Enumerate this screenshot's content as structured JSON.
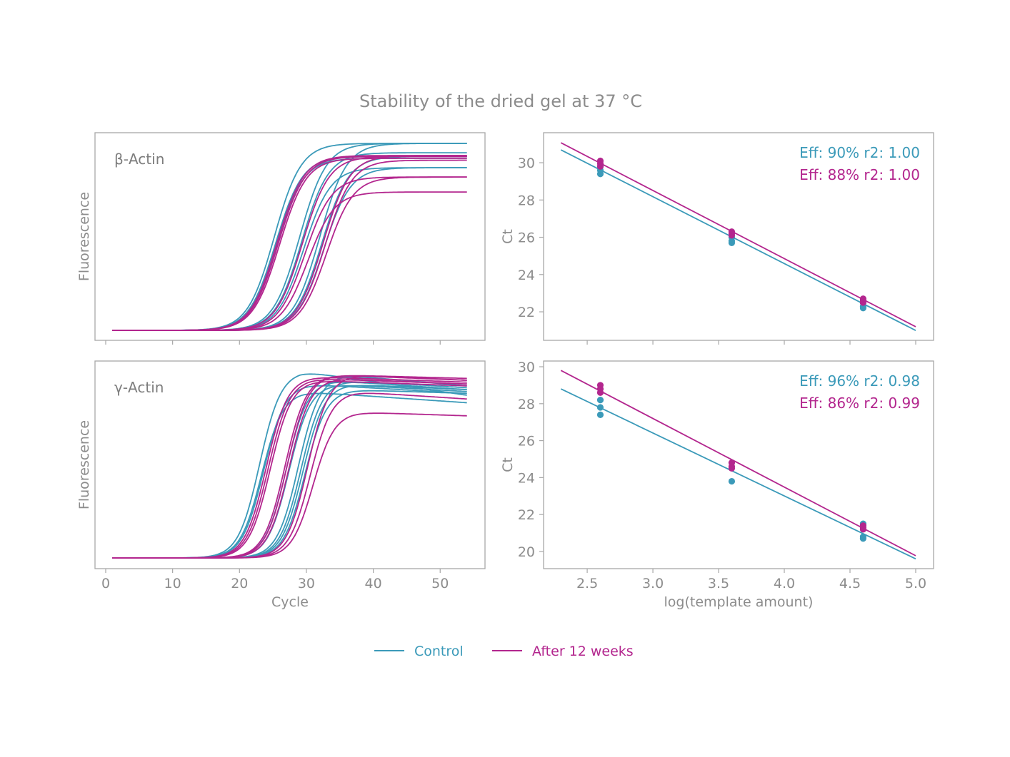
{
  "title": "Stability of the dried gel at 37 °C",
  "colors": {
    "control": "#3b9ab9",
    "after": "#b3268e",
    "text": "#8c8c8c",
    "frame": "#a8a8a8"
  },
  "legend": {
    "placement": "bottom-center",
    "items": [
      {
        "label": "Control",
        "color_key": "control"
      },
      {
        "label": "After 12 weeks",
        "color_key": "after"
      }
    ]
  },
  "chart_data": [
    {
      "type": "line",
      "panel_label": "β-Actin",
      "xlabel": "",
      "ylabel": "Fluorescence",
      "xlim": [
        -1.6,
        56.7
      ],
      "ylim": [
        -0.053,
        1.057
      ],
      "xticks": [
        0,
        10,
        20,
        30,
        40,
        50
      ],
      "show_xtick_labels": false,
      "yticks": [],
      "cycles": [
        1,
        54
      ],
      "curve_model": "sigmoid; y normalized fluorescence (0 = baseline, 1 = max plateau)",
      "series": [
        {
          "group": "control",
          "curves": [
            {
              "midpoint": 25.2,
              "peak": 1.0,
              "end": 1.0
            },
            {
              "midpoint": 25.4,
              "peak": 0.93,
              "end": 0.93
            },
            {
              "midpoint": 25.6,
              "peak": 0.92,
              "end": 0.92
            },
            {
              "midpoint": 29.0,
              "peak": 1.0,
              "end": 1.0
            },
            {
              "midpoint": 29.3,
              "peak": 0.95,
              "end": 0.95
            },
            {
              "midpoint": 29.6,
              "peak": 0.87,
              "end": 0.87
            },
            {
              "midpoint": 32.0,
              "peak": 1.0,
              "end": 1.0
            },
            {
              "midpoint": 32.3,
              "peak": 0.93,
              "end": 0.93
            },
            {
              "midpoint": 32.6,
              "peak": 0.87,
              "end": 0.87
            }
          ]
        },
        {
          "group": "after",
          "curves": [
            {
              "midpoint": 25.6,
              "peak": 0.935,
              "end": 0.935
            },
            {
              "midpoint": 25.8,
              "peak": 0.93,
              "end": 0.93
            },
            {
              "midpoint": 26.0,
              "peak": 0.92,
              "end": 0.92
            },
            {
              "midpoint": 29.4,
              "peak": 0.93,
              "end": 0.93
            },
            {
              "midpoint": 29.8,
              "peak": 0.82,
              "end": 0.82
            },
            {
              "midpoint": 30.2,
              "peak": 0.74,
              "end": 0.74
            },
            {
              "midpoint": 32.5,
              "peak": 0.935,
              "end": 0.935
            },
            {
              "midpoint": 32.8,
              "peak": 0.91,
              "end": 0.91
            },
            {
              "midpoint": 33.0,
              "peak": 0.82,
              "end": 0.82
            }
          ]
        }
      ],
      "slope": 2.0
    },
    {
      "type": "scatter",
      "xlabel": "",
      "ylabel": "Ct",
      "xlim": [
        2.168,
        5.136
      ],
      "ylim": [
        20.47,
        31.61
      ],
      "xticks": [
        2.5,
        3.0,
        3.5,
        4.0,
        4.5,
        5.0
      ],
      "show_xtick_labels": false,
      "yticks": [
        22,
        24,
        26,
        28,
        30
      ],
      "series": [
        {
          "group": "control",
          "annotation": "Eff: 90% r2: 1.00",
          "points": [
            [
              2.6,
              29.4
            ],
            [
              2.6,
              29.6
            ],
            [
              2.6,
              29.8
            ],
            [
              3.6,
              25.7
            ],
            [
              3.6,
              25.8
            ],
            [
              3.6,
              26.0
            ],
            [
              4.6,
              22.2
            ],
            [
              4.6,
              22.3
            ],
            [
              4.6,
              22.5
            ]
          ],
          "fit": [
            [
              2.3,
              30.69
            ],
            [
              5.0,
              21.0
            ]
          ]
        },
        {
          "group": "after",
          "annotation": "Eff: 88% r2: 1.00",
          "points": [
            [
              2.6,
              29.8
            ],
            [
              2.6,
              29.95
            ],
            [
              2.6,
              30.1
            ],
            [
              3.6,
              26.1
            ],
            [
              3.6,
              26.2
            ],
            [
              3.6,
              26.3
            ],
            [
              4.6,
              22.5
            ],
            [
              4.6,
              22.6
            ],
            [
              4.6,
              22.7
            ]
          ],
          "fit": [
            [
              2.3,
              31.07
            ],
            [
              5.0,
              21.2
            ]
          ]
        }
      ]
    },
    {
      "type": "line",
      "panel_label": "γ-Actin",
      "xlabel": "Cycle",
      "ylabel": "Fluorescence",
      "xlim": [
        -1.6,
        56.7
      ],
      "ylim": [
        -0.057,
        1.053
      ],
      "xticks": [
        0,
        10,
        20,
        30,
        40,
        50
      ],
      "show_xtick_labels": true,
      "yticks": [],
      "cycles": [
        1,
        54
      ],
      "curve_model": "sigmoid with post-peak decline; y normalized fluorescence",
      "series": [
        {
          "group": "control",
          "curves": [
            {
              "midpoint": 23.0,
              "peak": 1.0,
              "end": 0.87
            },
            {
              "midpoint": 23.3,
              "peak": 0.89,
              "end": 0.83
            },
            {
              "midpoint": 23.6,
              "peak": 0.93,
              "end": 0.88
            },
            {
              "midpoint": 27.0,
              "peak": 0.95,
              "end": 0.9
            },
            {
              "midpoint": 27.4,
              "peak": 0.93,
              "end": 0.89
            },
            {
              "midpoint": 28.8,
              "peak": 0.98,
              "end": 0.92
            },
            {
              "midpoint": 29.2,
              "peak": 0.95,
              "end": 0.91
            },
            {
              "midpoint": 29.5,
              "peak": 0.93,
              "end": 0.9
            },
            {
              "midpoint": 29.8,
              "peak": 0.9,
              "end": 0.88
            }
          ]
        },
        {
          "group": "after",
          "curves": [
            {
              "midpoint": 24.0,
              "peak": 0.97,
              "end": 0.94
            },
            {
              "midpoint": 24.3,
              "peak": 0.96,
              "end": 0.93
            },
            {
              "midpoint": 24.6,
              "peak": 0.95,
              "end": 0.92
            },
            {
              "midpoint": 26.8,
              "peak": 0.98,
              "end": 0.95
            },
            {
              "midpoint": 27.1,
              "peak": 0.98,
              "end": 0.96
            },
            {
              "midpoint": 27.4,
              "peak": 0.96,
              "end": 0.93
            },
            {
              "midpoint": 30.2,
              "peak": 0.98,
              "end": 0.95
            },
            {
              "midpoint": 30.6,
              "peak": 0.89,
              "end": 0.85
            },
            {
              "midpoint": 31.0,
              "peak": 0.78,
              "end": 0.76
            }
          ]
        }
      ],
      "slope": 1.6
    },
    {
      "type": "scatter",
      "xlabel": "log(template amount)",
      "ylabel": "Ct",
      "xlim": [
        2.168,
        5.136
      ],
      "ylim": [
        19.07,
        30.31
      ],
      "xticks": [
        2.5,
        3.0,
        3.5,
        4.0,
        4.5,
        5.0
      ],
      "show_xtick_labels": true,
      "yticks": [
        20,
        22,
        24,
        26,
        28,
        30
      ],
      "series": [
        {
          "group": "control",
          "annotation": "Eff: 96% r2: 0.98",
          "points": [
            [
              2.6,
              28.2
            ],
            [
              2.6,
              27.8
            ],
            [
              2.6,
              27.4
            ],
            [
              3.6,
              23.8
            ],
            [
              4.6,
              20.7
            ],
            [
              4.6,
              20.8
            ],
            [
              4.6,
              21.5
            ]
          ],
          "fit": [
            [
              2.3,
              28.8
            ],
            [
              5.0,
              19.6
            ]
          ]
        },
        {
          "group": "after",
          "annotation": "Eff: 86% r2: 0.99",
          "points": [
            [
              2.6,
              29.0
            ],
            [
              2.6,
              28.8
            ],
            [
              2.6,
              28.6
            ],
            [
              3.6,
              24.8
            ],
            [
              3.6,
              24.6
            ],
            [
              3.6,
              24.5
            ],
            [
              4.6,
              21.4
            ],
            [
              4.6,
              21.3
            ],
            [
              4.6,
              21.2
            ]
          ],
          "fit": [
            [
              2.3,
              29.8
            ],
            [
              5.0,
              19.77
            ]
          ]
        }
      ]
    }
  ]
}
